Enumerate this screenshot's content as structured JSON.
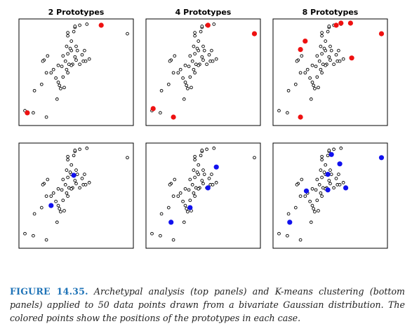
{
  "chart_data": {
    "type": "scatter",
    "data_points": [
      [
        -2.35,
        -2.0
      ],
      [
        -2.0,
        -2.1
      ],
      [
        -1.95,
        -1.05
      ],
      [
        -1.65,
        -0.75
      ],
      [
        -1.45,
        -0.2
      ],
      [
        -1.45,
        -2.3
      ],
      [
        -1.55,
        0.4
      ],
      [
        -1.6,
        0.35
      ],
      [
        -1.4,
        0.6
      ],
      [
        -1.25,
        -0.2
      ],
      [
        -1.05,
        -0.45
      ],
      [
        -1.15,
        -0.05
      ],
      [
        -1.0,
        -1.45
      ],
      [
        -0.95,
        -0.65
      ],
      [
        -0.9,
        -0.8
      ],
      [
        -0.85,
        -0.95
      ],
      [
        -0.7,
        -0.9
      ],
      [
        -0.75,
        -0.4
      ],
      [
        -0.6,
        -0.05
      ],
      [
        -0.55,
        -0.2
      ],
      [
        -0.8,
        0.1
      ],
      [
        -0.95,
        0.15
      ],
      [
        -0.65,
        0.35
      ],
      [
        -0.5,
        0.2
      ],
      [
        -0.75,
        0.6
      ],
      [
        -0.55,
        0.7
      ],
      [
        -0.4,
        0.85
      ],
      [
        -0.45,
        0.95
      ],
      [
        -0.6,
        1.05
      ],
      [
        -0.4,
        1.3
      ],
      [
        -0.2,
        1.05
      ],
      [
        -0.15,
        0.85
      ],
      [
        -0.25,
        0.55
      ],
      [
        -0.2,
        0.4
      ],
      [
        -0.35,
        0.2
      ],
      [
        -0.55,
        1.55
      ],
      [
        -0.3,
        1.75
      ],
      [
        -0.55,
        1.7
      ],
      [
        -0.4,
        0.15
      ],
      [
        0.1,
        0.35
      ],
      [
        0.2,
        0.35
      ],
      [
        0.05,
        0.65
      ],
      [
        0.15,
        0.85
      ],
      [
        -0.05,
        0.2
      ],
      [
        0.35,
        0.45
      ],
      [
        -0.25,
        1.95
      ],
      [
        -0.05,
        2.05
      ],
      [
        0.25,
        2.1
      ],
      [
        -0.25,
        2.0
      ],
      [
        1.95,
        1.65
      ]
    ],
    "panels": [
      {
        "title": "2 Prototypes",
        "color": "#ee1111",
        "prototypes": [
          [
            -2.25,
            -2.1
          ],
          [
            0.85,
            2.05
          ]
        ]
      },
      {
        "title": "4 Prototypes",
        "color": "#ee1111",
        "prototypes": [
          [
            -2.3,
            -1.9
          ],
          [
            -1.45,
            -2.3
          ],
          [
            0.0,
            2.05
          ],
          [
            1.95,
            1.65
          ]
        ]
      },
      {
        "title": "8 Prototypes",
        "color": "#ee1111",
        "prototypes": [
          [
            -1.45,
            -2.3
          ],
          [
            -1.45,
            0.9
          ],
          [
            0.05,
            2.05
          ],
          [
            0.25,
            2.15
          ],
          [
            0.65,
            2.15
          ],
          [
            1.95,
            1.65
          ],
          [
            0.7,
            0.5
          ],
          [
            -1.25,
            1.3
          ]
        ]
      },
      {
        "title": "",
        "color": "#1111ee",
        "prototypes": [
          [
            -1.25,
            -0.65
          ],
          [
            -0.3,
            0.8
          ]
        ]
      },
      {
        "title": "",
        "color": "#1111ee",
        "prototypes": [
          [
            -1.55,
            -1.45
          ],
          [
            -0.75,
            -0.75
          ],
          [
            0.0,
            0.2
          ],
          [
            0.35,
            1.2
          ]
        ]
      },
      {
        "title": "",
        "color": "#1111ee",
        "prototypes": [
          [
            -1.9,
            -1.45
          ],
          [
            -1.2,
            0.05
          ],
          [
            -0.3,
            0.1
          ],
          [
            -0.3,
            0.85
          ],
          [
            -0.15,
            1.8
          ],
          [
            0.45,
            0.2
          ],
          [
            0.2,
            1.35
          ],
          [
            1.95,
            1.65
          ]
        ]
      }
    ],
    "xlim": [
      -2.6,
      2.2
    ],
    "ylim": [
      -2.7,
      2.35
    ],
    "grid": false,
    "axes_ticks": false
  },
  "caption": {
    "label": "FIGURE 14.35.",
    "text": " Archetypal analysis (top panels) and K-means clustering (bottom panels) applied to 50 data points drawn from a bivariate Gaussian distribution. The colored points show the positions of the prototypes in each case."
  }
}
